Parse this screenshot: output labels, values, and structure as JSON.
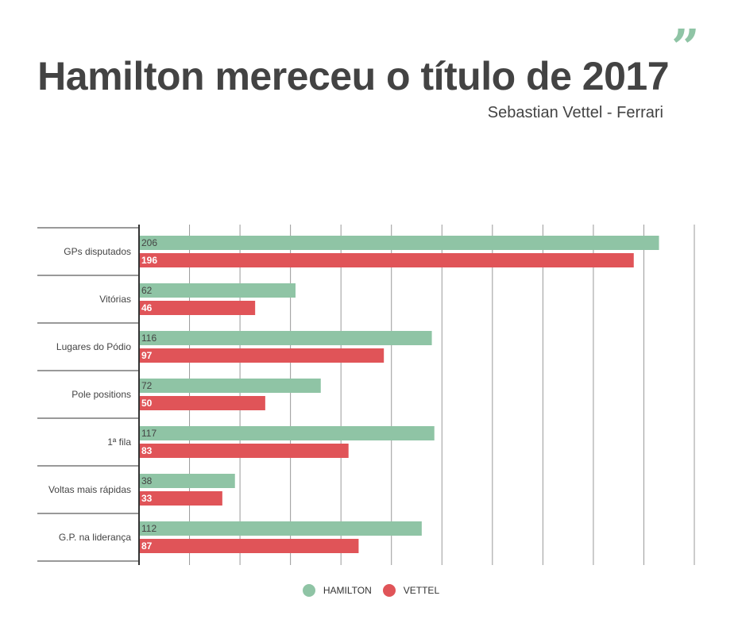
{
  "title": "Hamilton mereceu o título de 2017",
  "quote_mark": "”",
  "subtitle": "Sebastian Vettel - Ferrari",
  "chart_data": {
    "type": "bar",
    "orientation": "horizontal",
    "categories": [
      "GPs disputados",
      "Vitórias",
      "Lugares do Pódio",
      "Pole positions",
      "1ª fila",
      "Voltas mais rápidas",
      "G.P. na liderança"
    ],
    "series": [
      {
        "name": "HAMILTON",
        "color": "#8fc4a5",
        "values": [
          206,
          62,
          116,
          72,
          117,
          38,
          112
        ]
      },
      {
        "name": "VETTEL",
        "color": "#e05458",
        "values": [
          196,
          46,
          97,
          50,
          83,
          33,
          87
        ]
      }
    ],
    "xlim": [
      0,
      220
    ],
    "grid_step": 20,
    "grid": true,
    "legend": "bottom-center"
  }
}
